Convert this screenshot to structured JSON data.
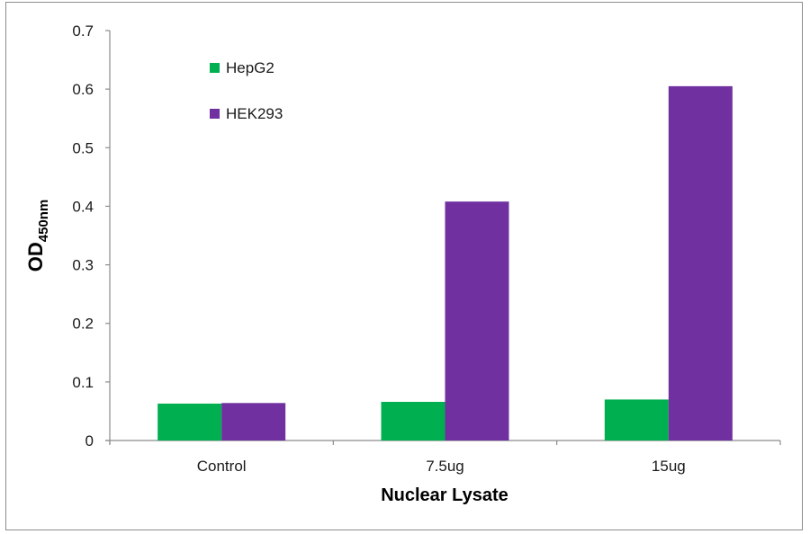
{
  "chart_data": {
    "type": "bar",
    "title": "",
    "xlabel": "Nuclear Lysate",
    "ylabel": "OD",
    "ylabel_subscript": "450nm",
    "categories": [
      "Control",
      "7.5ug",
      "15ug"
    ],
    "series": [
      {
        "name": "HepG2",
        "color": "#00b050",
        "values": [
          0.063,
          0.066,
          0.07
        ]
      },
      {
        "name": "HEK293",
        "color": "#7030a0",
        "values": [
          0.064,
          0.408,
          0.605
        ]
      }
    ],
    "ylim": [
      0,
      0.7
    ],
    "yticks": [
      "0",
      "0.1",
      "0.2",
      "0.3",
      "0.4",
      "0.5",
      "0.6",
      "0.7"
    ],
    "grid": false,
    "legend_position": "upper-left inside plot"
  }
}
